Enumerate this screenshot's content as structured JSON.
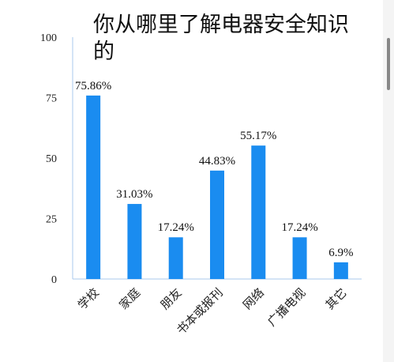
{
  "chart_data": {
    "type": "bar",
    "title": "你从哪里了解电器安全知识的",
    "categories": [
      "学校",
      "家庭",
      "朋友",
      "书本或报刊",
      "网络",
      "广播电视",
      "其它"
    ],
    "values": [
      75.86,
      31.03,
      17.24,
      44.83,
      55.17,
      17.24,
      6.9
    ],
    "data_labels": [
      "75.86%",
      "31.03%",
      "17.24%",
      "44.83%",
      "55.17%",
      "17.24%",
      "6.9%"
    ],
    "ylim": [
      0,
      100
    ],
    "yticks": [
      0,
      25,
      50,
      75,
      100
    ],
    "ytick_labels": [
      "0",
      "25",
      "50",
      "75",
      "100"
    ],
    "xlabel": "",
    "ylabel": "",
    "grid": false,
    "legend": "none",
    "bar_color": "#1a8cf0"
  }
}
